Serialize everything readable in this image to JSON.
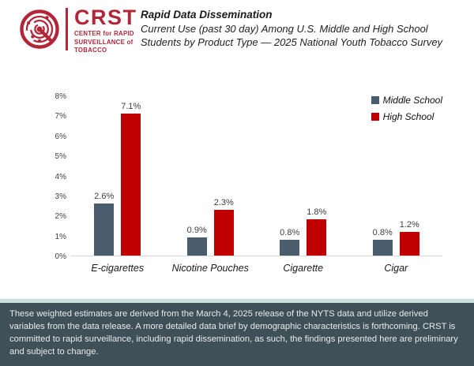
{
  "header": {
    "logo": {
      "acronym": "CRST",
      "sub1": "CENTER for RAPID",
      "sub2": "SURVEILLANCE of",
      "sub3": "TOBACCO"
    },
    "title": "Rapid Data Dissemination",
    "subtitle_line1": "Current Use (past 30 day) Among U.S. Middle and High School",
    "subtitle_line2": "Students by Product Type — 2025 National Youth Tobacco Survey"
  },
  "chart_data": {
    "type": "bar",
    "categories": [
      "E-cigarettes",
      "Nicotine Pouches",
      "Cigarette",
      "Cigar"
    ],
    "series": [
      {
        "name": "Middle School",
        "color": "#4A5D6C",
        "values": [
          2.6,
          0.9,
          0.8,
          0.8
        ]
      },
      {
        "name": "High School",
        "color": "#C00000",
        "values": [
          7.1,
          2.3,
          1.8,
          1.2
        ]
      }
    ],
    "value_suffix": "%",
    "y_ticks": [
      "8%",
      "7%",
      "6%",
      "5%",
      "4%",
      "3%",
      "2%",
      "1%",
      "0%"
    ],
    "ylim": [
      0,
      8
    ],
    "grid": false,
    "legend_position": "top-right",
    "title": "Current Use (past 30 day) Among U.S. Middle and High School Students by Product Type — 2025 National Youth Tobacco Survey"
  },
  "footer": {
    "note": "These weighted estimates are derived from the March 4, 2025 release of the NYTS data and utilize derived variables from the data release. A more detailed data brief by demographic characteristics is forthcoming. CRST is committed to rapid surveillance, including rapid dissemination, as such, the findings presented here are preliminary and subject to change."
  },
  "colors": {
    "logo_red": "#B22638",
    "middle_school_bar": "#4A5D6C",
    "high_school_bar": "#C00000",
    "banner_background": "#3F5059",
    "banner_accent": "#C9E0DA"
  }
}
